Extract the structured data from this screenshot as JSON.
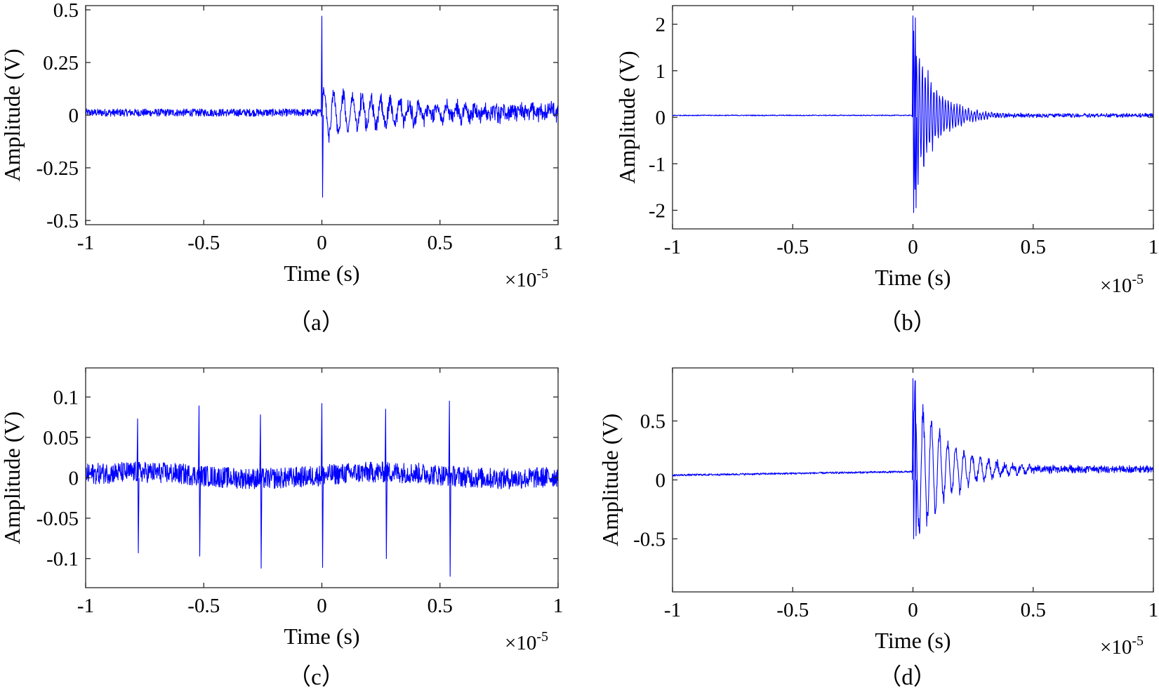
{
  "chart_data": [
    {
      "type": "line",
      "panel_label": "（a）",
      "xlabel": "Time (s)",
      "ylabel": "Amplitude (V)",
      "x_exponent": {
        "base": "×10",
        "power": "-5"
      },
      "xlim": [
        -1,
        1
      ],
      "ylim": [
        -0.52,
        0.52
      ],
      "xticks": [
        -1,
        -0.5,
        0,
        0.5,
        1
      ],
      "xtick_labels": [
        "-1",
        "-0.5",
        "0",
        "0.5",
        "1"
      ],
      "yticks": [
        -0.5,
        -0.25,
        0,
        0.25,
        0.5
      ],
      "ytick_labels": [
        "-0.5",
        "-0.25",
        "0",
        "0.25",
        "0.5"
      ],
      "color": "#0000ff",
      "series": [
        {
          "signal": "single-burst",
          "noise_amplitude": 0.018,
          "baseline": 0.012,
          "spike_peak": 0.47,
          "spike_trough": -0.39,
          "spike_times": [
            0
          ],
          "decay_amplitude": 0.14,
          "decay_rate": 0.35,
          "oscillation_period": 0.04,
          "tail_amplitude": 0.04
        }
      ]
    },
    {
      "type": "line",
      "panel_label": "（b）",
      "xlabel": "Time (s)",
      "ylabel": "Amplitude (V)",
      "x_exponent": {
        "base": "×10",
        "power": "-5"
      },
      "xlim": [
        -1,
        1
      ],
      "ylim": [
        -2.4,
        2.4
      ],
      "xticks": [
        -1,
        -0.5,
        0,
        0.5,
        1
      ],
      "xtick_labels": [
        "-1",
        "-0.5",
        "0",
        "0.5",
        "1"
      ],
      "yticks": [
        -2,
        -1,
        0,
        1,
        2
      ],
      "ytick_labels": [
        "-2",
        "-1",
        "0",
        "1",
        "2"
      ],
      "color": "#0000ff",
      "series": [
        {
          "signal": "single-burst",
          "noise_amplitude": 0.01,
          "baseline": 0.04,
          "spike_peak": 2.18,
          "spike_trough": -2.05,
          "spike_times": [
            0
          ],
          "decay_amplitude": 2.0,
          "decay_rate": 0.09,
          "oscillation_period": 0.012,
          "tail_amplitude": 0.05
        }
      ]
    },
    {
      "type": "line",
      "panel_label": "（c）",
      "xlabel": "Time (s)",
      "ylabel": "Amplitude (V)",
      "x_exponent": {
        "base": "×10",
        "power": "-5"
      },
      "xlim": [
        -1,
        1
      ],
      "ylim": [
        -0.136,
        0.136
      ],
      "xticks": [
        -1,
        -0.5,
        0,
        0.5,
        1
      ],
      "xtick_labels": [
        "-1",
        "-0.5",
        "0",
        "0.5",
        "1"
      ],
      "yticks": [
        -0.1,
        -0.05,
        0,
        0.05,
        0.1
      ],
      "ytick_labels": [
        "-0.1",
        "-0.05",
        "0",
        "0.05",
        "0.1"
      ],
      "color": "#0000ff",
      "series": [
        {
          "signal": "periodic-spikes",
          "noise_amplitude": 0.013,
          "baseline": 0.003,
          "spike_times": [
            -0.78,
            -0.52,
            -0.26,
            0.0,
            0.27,
            0.54
          ],
          "spike_peaks": [
            0.073,
            0.089,
            0.078,
            0.092,
            0.085,
            0.095
          ],
          "spike_troughs": [
            -0.093,
            -0.097,
            -0.112,
            -0.111,
            -0.1,
            -0.122
          ]
        }
      ]
    },
    {
      "type": "line",
      "panel_label": "（d）",
      "xlabel": "Time (s)",
      "ylabel": "Amplitude (V)",
      "x_exponent": {
        "base": "×10",
        "power": "-5"
      },
      "xlim": [
        -1,
        1
      ],
      "ylim": [
        -0.95,
        0.95
      ],
      "xticks": [
        -1,
        -0.5,
        0,
        0.5,
        1
      ],
      "xtick_labels": [
        "-1",
        "-0.5",
        "0",
        "0.5",
        "1"
      ],
      "yticks": [
        -0.5,
        0,
        0.5
      ],
      "ytick_labels": [
        "-0.5",
        "0",
        "0.5"
      ],
      "color": "#0000ff",
      "series": [
        {
          "signal": "single-burst",
          "noise_amplitude": 0.008,
          "baseline_start": 0.04,
          "baseline_end": 0.07,
          "spike_peak": 0.86,
          "spike_trough": -0.5,
          "spike_times": [
            0
          ],
          "decay_amplitude": 0.8,
          "decay_rate": 0.14,
          "oscillation_period": 0.034,
          "tail_amplitude": 0.035,
          "tail_baseline": 0.09
        }
      ]
    }
  ]
}
